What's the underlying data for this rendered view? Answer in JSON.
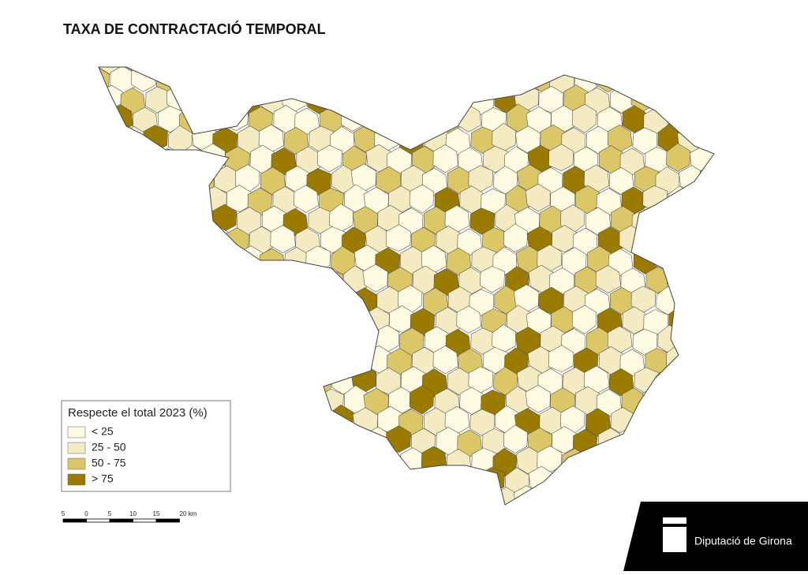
{
  "title": "TAXA DE CONTRACTACIÓ TEMPORAL",
  "legend": {
    "title": "Respecte el total 2023 (%)",
    "items": [
      {
        "label": "< 25",
        "color": "#fffbe3"
      },
      {
        "label": "25 - 50",
        "color": "#f4ebc3"
      },
      {
        "label": "50 - 75",
        "color": "#dcc768"
      },
      {
        "label": "> 75",
        "color": "#9a7b00"
      }
    ]
  },
  "scale_bar": {
    "labels": [
      "5",
      "0",
      "5",
      "10",
      "15",
      "20 km"
    ]
  },
  "logo": {
    "text": "Diputació de Girona"
  }
}
